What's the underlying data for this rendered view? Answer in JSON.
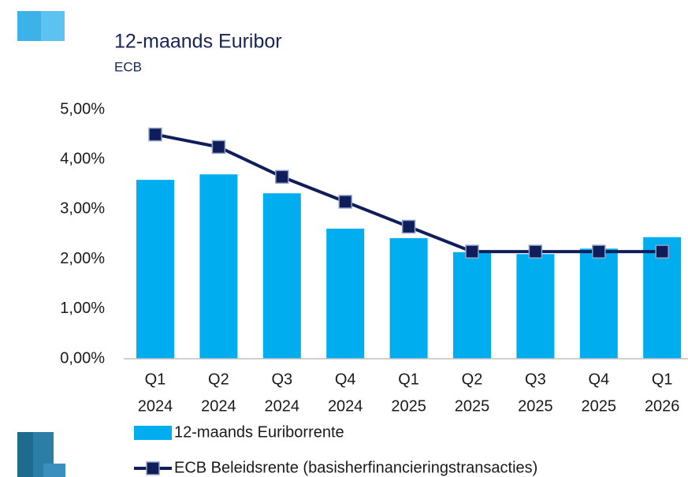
{
  "chart_data": {
    "type": "bar_line",
    "title": "12-maands Euribor",
    "subtitle": "ECB",
    "categories": [
      [
        "Q1",
        "2024"
      ],
      [
        "Q2",
        "2024"
      ],
      [
        "Q3",
        "2024"
      ],
      [
        "Q4",
        "2024"
      ],
      [
        "Q1",
        "2025"
      ],
      [
        "Q2",
        "2025"
      ],
      [
        "Q3",
        "2025"
      ],
      [
        "Q4",
        "2025"
      ],
      [
        "Q1",
        "2026"
      ]
    ],
    "series": [
      {
        "name": "12-maands Euriborrente",
        "type": "bar",
        "color": "#00aeef",
        "values": [
          3.59,
          3.7,
          3.32,
          2.61,
          2.42,
          2.14,
          2.1,
          2.21,
          2.44
        ]
      },
      {
        "name": "ECB Beleidsrente (basisherfinancieringstransacties)",
        "type": "line",
        "color": "#0f1e5a",
        "values": [
          4.5,
          4.25,
          3.65,
          3.15,
          2.65,
          2.15,
          2.15,
          2.15,
          2.15
        ]
      }
    ],
    "ylim": [
      0,
      5
    ],
    "yticks": [
      {
        "value": 0,
        "label": "0,00%"
      },
      {
        "value": 1,
        "label": "1,00%"
      },
      {
        "value": 2,
        "label": "2,00%"
      },
      {
        "value": 3,
        "label": "3,00%"
      },
      {
        "value": 4,
        "label": "4,00%"
      },
      {
        "value": 5,
        "label": "5,00%"
      }
    ],
    "grid": false
  }
}
